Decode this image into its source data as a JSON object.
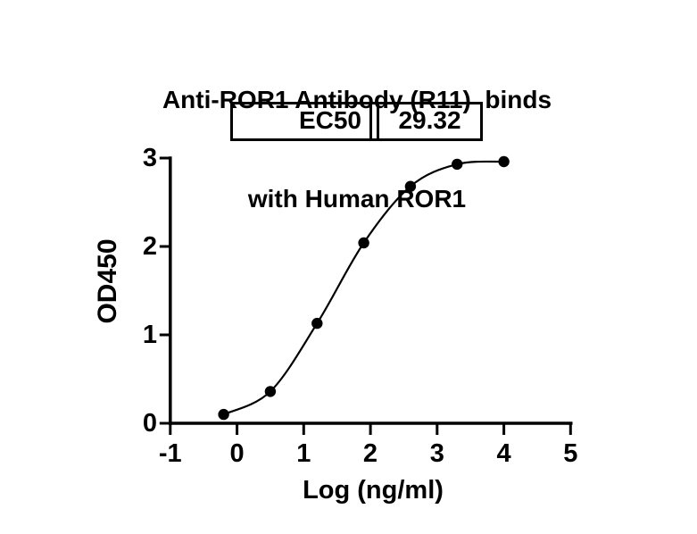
{
  "title": {
    "line1": "Anti-ROR1 Antibody (R11)  binds",
    "line2": "with Human ROR1"
  },
  "ec50": {
    "label": "EC50",
    "value": "29.32"
  },
  "colors": {
    "foreground": "#000000",
    "background": "#ffffff"
  },
  "chart_data": {
    "type": "scatter",
    "title": "Anti-ROR1 Antibody (R11)  binds with Human ROR1",
    "xlabel": "Log (ng/ml)",
    "ylabel": "OD450",
    "xlim": [
      -1,
      5
    ],
    "ylim": [
      0,
      3
    ],
    "x_ticks": [
      -1,
      0,
      1,
      2,
      3,
      4,
      5
    ],
    "y_ticks": [
      0,
      1,
      2,
      3
    ],
    "grid": false,
    "legend": false,
    "marker": "filled-circle",
    "curve": "smooth-sigmoidal-fit-through-points",
    "annotations": {
      "EC50": 29.32
    },
    "series": [
      {
        "x": [
          -0.2,
          0.5,
          1.2,
          1.9,
          2.6,
          3.3,
          4.0
        ],
        "y": [
          0.1,
          0.36,
          1.13,
          2.04,
          2.68,
          2.93,
          2.96
        ],
        "color": "#000000"
      }
    ]
  }
}
